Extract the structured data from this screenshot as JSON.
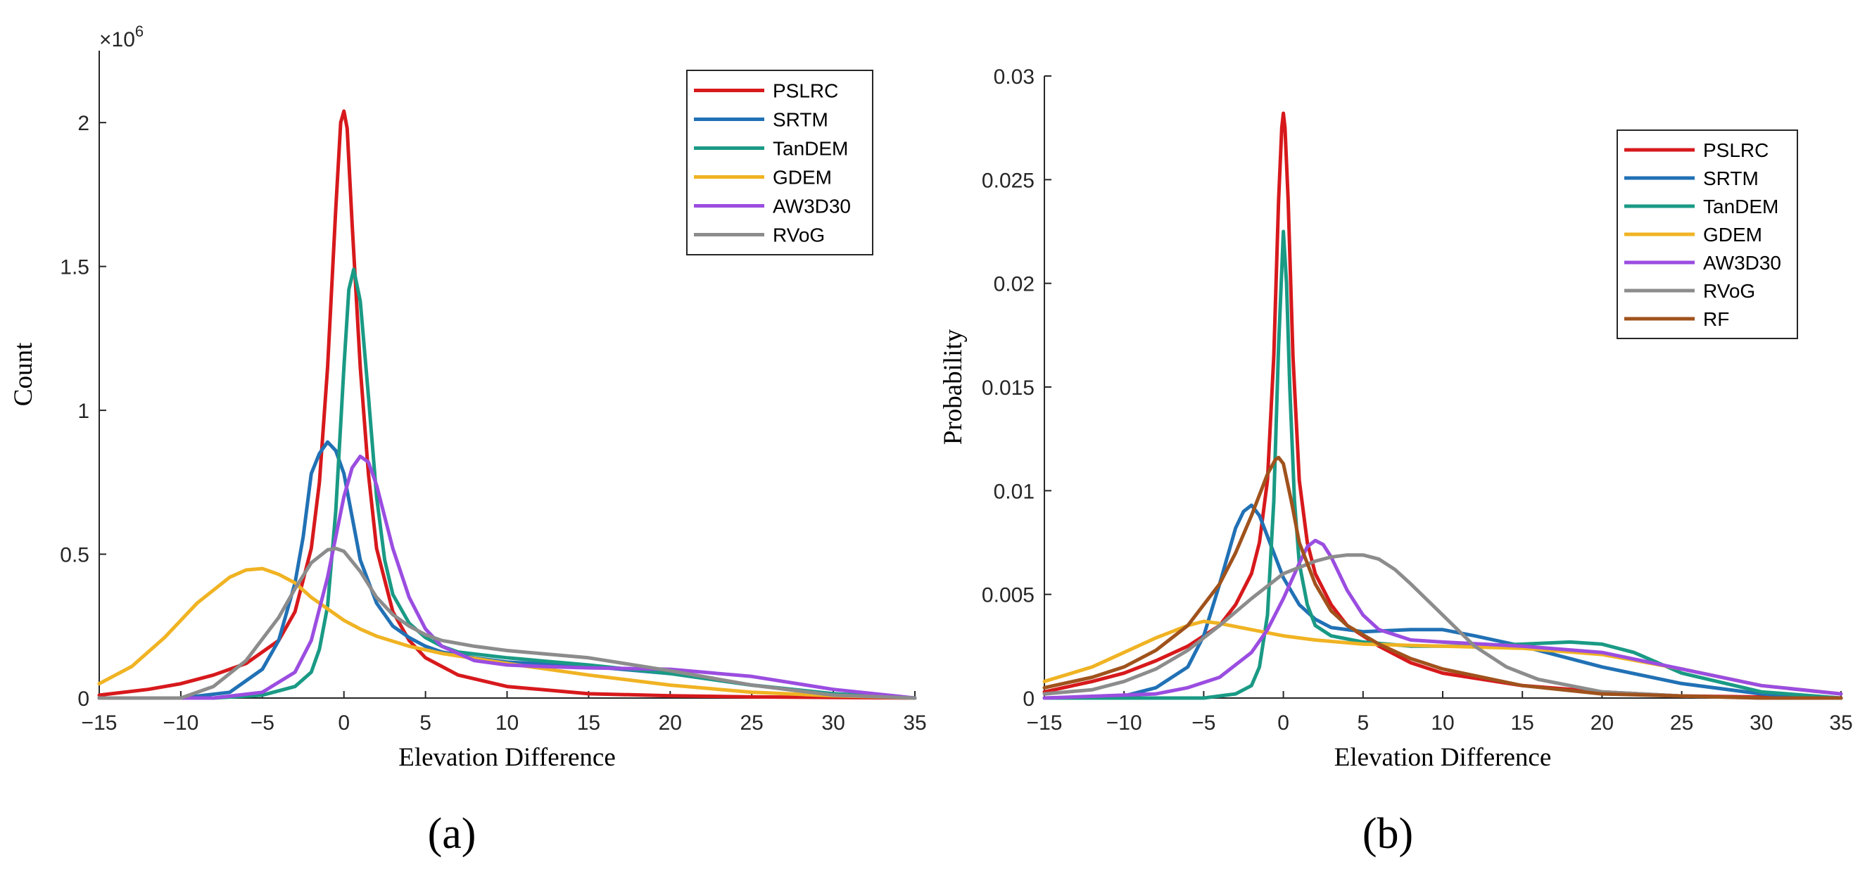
{
  "chart_data": [
    {
      "id": "a",
      "type": "line",
      "sub_label": "(a)",
      "xlabel": "Elevation Difference",
      "ylabel": "Count",
      "xlim": [
        -15,
        35
      ],
      "ylim": [
        0,
        2250000
      ],
      "xticks": [
        -15,
        -10,
        -5,
        0,
        5,
        10,
        15,
        20,
        25,
        30,
        35
      ],
      "yticks": [
        0,
        500000,
        1000000,
        1500000,
        2000000
      ],
      "ytick_labels": [
        "0",
        "0.5",
        "1",
        "1.5",
        "2"
      ],
      "y_exponent": {
        "times": "×10",
        "power": "6"
      },
      "legend": {
        "location": "top-right"
      },
      "series": [
        {
          "name": "PSLRC",
          "color": "#d7191c",
          "x": [
            -15,
            -12,
            -10,
            -8,
            -6,
            -4,
            -3,
            -2,
            -1.5,
            -1,
            -0.5,
            -0.2,
            0,
            0.2,
            0.5,
            1,
            1.5,
            2,
            3,
            4,
            5,
            7,
            10,
            15,
            20,
            25,
            35
          ],
          "y": [
            10000,
            30000,
            50000,
            80000,
            120000,
            200000,
            300000,
            520000,
            750000,
            1150000,
            1700000,
            2000000,
            2040000,
            1980000,
            1650000,
            1150000,
            780000,
            520000,
            300000,
            200000,
            140000,
            80000,
            40000,
            15000,
            8000,
            4000,
            0
          ]
        },
        {
          "name": "SRTM",
          "color": "#2171b5",
          "x": [
            -15,
            -10,
            -7,
            -5,
            -4,
            -3,
            -2.5,
            -2,
            -1.5,
            -1,
            -0.5,
            0,
            0.5,
            1,
            2,
            3,
            4,
            5,
            6,
            8,
            10,
            15,
            20,
            25,
            30,
            35
          ],
          "y": [
            0,
            0,
            20000,
            100000,
            200000,
            400000,
            560000,
            780000,
            850000,
            890000,
            860000,
            780000,
            630000,
            480000,
            330000,
            250000,
            210000,
            180000,
            160000,
            140000,
            125000,
            110000,
            85000,
            45000,
            15000,
            0
          ]
        },
        {
          "name": "TanDEM",
          "color": "#1a9a85",
          "x": [
            -15,
            -8,
            -5,
            -3,
            -2,
            -1.5,
            -1,
            -0.5,
            0,
            0.3,
            0.6,
            1,
            1.5,
            2,
            2.5,
            3,
            4,
            5,
            6,
            7,
            10,
            15,
            20,
            25,
            30,
            35
          ],
          "y": [
            0,
            0,
            10000,
            40000,
            90000,
            170000,
            320000,
            650000,
            1150000,
            1420000,
            1490000,
            1380000,
            1050000,
            700000,
            480000,
            360000,
            260000,
            210000,
            180000,
            160000,
            140000,
            115000,
            85000,
            45000,
            15000,
            0
          ]
        },
        {
          "name": "GDEM",
          "color": "#f0b323",
          "x": [
            -15,
            -13,
            -11,
            -9,
            -7,
            -6,
            -5,
            -4,
            -3,
            -2,
            -1,
            0,
            1,
            2,
            4,
            6,
            10,
            15,
            20,
            25,
            30,
            35
          ],
          "y": [
            50000,
            110000,
            210000,
            330000,
            420000,
            445000,
            450000,
            430000,
            400000,
            350000,
            310000,
            270000,
            240000,
            215000,
            180000,
            155000,
            120000,
            80000,
            45000,
            20000,
            8000,
            0
          ]
        },
        {
          "name": "AW3D30",
          "color": "#9b4de0",
          "x": [
            -15,
            -8,
            -5,
            -3,
            -2,
            -1,
            0,
            0.5,
            1,
            1.5,
            2,
            3,
            4,
            5,
            6,
            8,
            10,
            12,
            15,
            20,
            25,
            30,
            35
          ],
          "y": [
            0,
            0,
            20000,
            90000,
            200000,
            420000,
            700000,
            800000,
            840000,
            820000,
            740000,
            520000,
            350000,
            240000,
            180000,
            130000,
            115000,
            110000,
            105000,
            100000,
            75000,
            30000,
            0
          ]
        },
        {
          "name": "RVoG",
          "color": "#8c8c8c",
          "x": [
            -15,
            -10,
            -8,
            -6,
            -4,
            -3,
            -2,
            -1,
            -0.5,
            0,
            1,
            2,
            3,
            4,
            5,
            6,
            8,
            10,
            12,
            15,
            20,
            25,
            30,
            35
          ],
          "y": [
            0,
            0,
            40000,
            130000,
            280000,
            380000,
            470000,
            515000,
            520000,
            510000,
            440000,
            350000,
            290000,
            250000,
            220000,
            200000,
            180000,
            165000,
            155000,
            140000,
            95000,
            45000,
            10000,
            0
          ]
        }
      ]
    },
    {
      "id": "b",
      "type": "line",
      "sub_label": "(b)",
      "xlabel": "Elevation Difference",
      "ylabel": "Probability",
      "xlim": [
        -15,
        35
      ],
      "ylim": [
        0,
        0.03
      ],
      "xticks": [
        -15,
        -10,
        -5,
        0,
        5,
        10,
        15,
        20,
        25,
        30,
        35
      ],
      "yticks": [
        0,
        0.005,
        0.01,
        0.015,
        0.02,
        0.025,
        0.03
      ],
      "ytick_labels": [
        "0",
        "0.005",
        "0.01",
        "0.015",
        "0.02",
        "0.025",
        "0.03"
      ],
      "legend": {
        "location": "top-right"
      },
      "series": [
        {
          "name": "PSLRC",
          "color": "#d7191c",
          "x": [
            -15,
            -12,
            -10,
            -8,
            -6,
            -4,
            -3,
            -2,
            -1.5,
            -1,
            -0.6,
            -0.3,
            -0.1,
            0,
            0.1,
            0.3,
            0.6,
            1,
            1.5,
            2,
            3,
            4,
            6,
            8,
            10,
            15,
            20,
            25,
            30,
            35
          ],
          "y": [
            0.0003,
            0.0008,
            0.0012,
            0.0018,
            0.0025,
            0.0035,
            0.0045,
            0.006,
            0.0075,
            0.0105,
            0.0165,
            0.024,
            0.0275,
            0.0282,
            0.0275,
            0.024,
            0.0165,
            0.0105,
            0.0075,
            0.006,
            0.0045,
            0.0035,
            0.0025,
            0.0017,
            0.0012,
            0.0006,
            0.0003,
            0.0001,
            5e-05,
            0
          ]
        },
        {
          "name": "SRTM",
          "color": "#2171b5",
          "x": [
            -15,
            -10,
            -8,
            -6,
            -5,
            -4,
            -3,
            -2.5,
            -2,
            -1.5,
            -1,
            0,
            1,
            2,
            3,
            5,
            8,
            10,
            12,
            15,
            20,
            25,
            30,
            35
          ],
          "y": [
            0,
            0.0001,
            0.0005,
            0.0015,
            0.003,
            0.0055,
            0.0082,
            0.009,
            0.0093,
            0.0088,
            0.0078,
            0.0058,
            0.0045,
            0.0038,
            0.0034,
            0.0032,
            0.0033,
            0.0033,
            0.003,
            0.0025,
            0.0015,
            0.0007,
            0.0002,
            0
          ]
        },
        {
          "name": "TanDEM",
          "color": "#1a9a85",
          "x": [
            -15,
            -5,
            -3,
            -2,
            -1.5,
            -1,
            -0.6,
            -0.3,
            0,
            0.2,
            0.4,
            0.7,
            1,
            1.5,
            2,
            3,
            5,
            8,
            10,
            12,
            15,
            18,
            20,
            22,
            25,
            30,
            35
          ],
          "y": [
            0,
            0,
            0.0002,
            0.0006,
            0.0015,
            0.004,
            0.0095,
            0.017,
            0.0225,
            0.02,
            0.015,
            0.0095,
            0.0065,
            0.0045,
            0.0035,
            0.003,
            0.0027,
            0.0025,
            0.0025,
            0.0025,
            0.0026,
            0.0027,
            0.0026,
            0.0022,
            0.0012,
            0.0003,
            0
          ]
        },
        {
          "name": "GDEM",
          "color": "#f0b323",
          "x": [
            -15,
            -12,
            -10,
            -8,
            -6,
            -5,
            -4,
            -2,
            0,
            2,
            5,
            10,
            15,
            20,
            25,
            30,
            35
          ],
          "y": [
            0.0008,
            0.0015,
            0.0022,
            0.0029,
            0.0035,
            0.0037,
            0.0036,
            0.0033,
            0.003,
            0.0028,
            0.0026,
            0.0025,
            0.0024,
            0.0021,
            0.0014,
            0.0006,
            0.0002
          ]
        },
        {
          "name": "AW3D30",
          "color": "#9b4de0",
          "x": [
            -15,
            -8,
            -6,
            -4,
            -2,
            -1,
            0,
            1,
            1.5,
            2,
            2.5,
            3,
            4,
            5,
            6,
            8,
            10,
            15,
            20,
            25,
            30,
            35
          ],
          "y": [
            0,
            0.0002,
            0.0005,
            0.001,
            0.0022,
            0.0033,
            0.0048,
            0.0065,
            0.0073,
            0.0076,
            0.0074,
            0.0068,
            0.0052,
            0.004,
            0.0033,
            0.0028,
            0.0027,
            0.0025,
            0.0022,
            0.0014,
            0.0006,
            0.0002
          ]
        },
        {
          "name": "RVoG",
          "color": "#8c8c8c",
          "x": [
            -15,
            -12,
            -10,
            -8,
            -6,
            -4,
            -2,
            0,
            2,
            3,
            4,
            5,
            6,
            7,
            8,
            10,
            12,
            14,
            16,
            20,
            25,
            30,
            35
          ],
          "y": [
            0.0002,
            0.0004,
            0.0008,
            0.0014,
            0.0023,
            0.0035,
            0.0048,
            0.006,
            0.0066,
            0.0068,
            0.0069,
            0.0069,
            0.0067,
            0.0062,
            0.0055,
            0.004,
            0.0025,
            0.0015,
            0.0009,
            0.0003,
            0.0001,
            0,
            0
          ]
        },
        {
          "name": "RF",
          "color": "#a0521c",
          "x": [
            -15,
            -12,
            -10,
            -8,
            -6,
            -4,
            -3,
            -2,
            -1,
            -0.5,
            -0.3,
            0,
            0.5,
            1,
            2,
            3,
            4,
            6,
            8,
            10,
            15,
            20,
            25,
            30,
            35
          ],
          "y": [
            0.0005,
            0.001,
            0.0015,
            0.0023,
            0.0035,
            0.0055,
            0.007,
            0.0088,
            0.0108,
            0.0115,
            0.0116,
            0.0113,
            0.0095,
            0.0075,
            0.0055,
            0.0042,
            0.0035,
            0.0026,
            0.0019,
            0.0014,
            0.0006,
            0.0002,
            0.0001,
            0,
            0
          ]
        }
      ]
    }
  ]
}
